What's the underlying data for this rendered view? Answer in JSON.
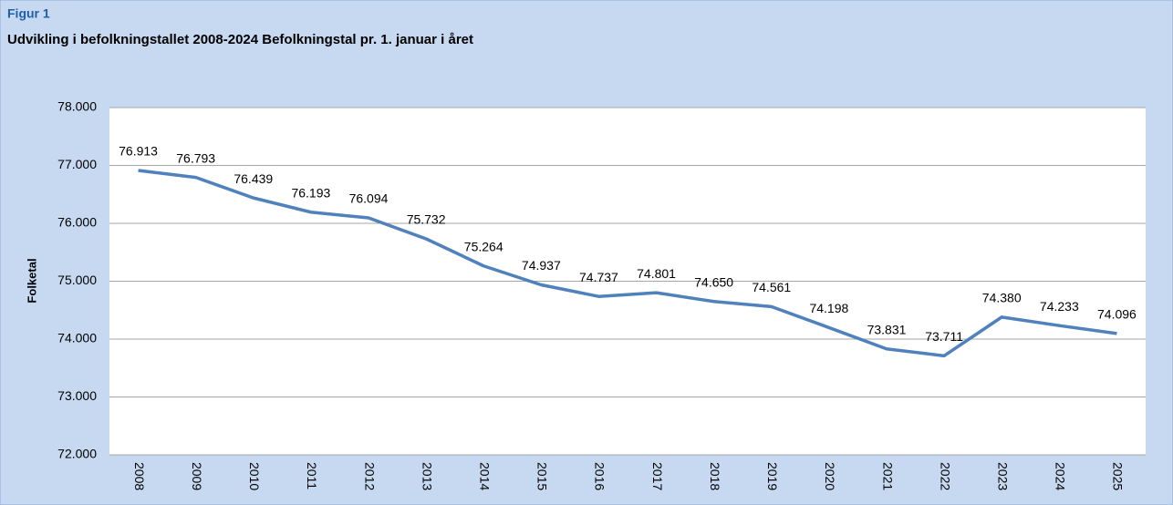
{
  "chart_data": {
    "type": "line",
    "figure_label": "Figur 1",
    "title": "Udvikling i befolkningstallet 2008-2024 Befolkningstal pr. 1. januar i året",
    "y_label": "Folketal",
    "categories": [
      "2008",
      "2009",
      "2010",
      "2011",
      "2012",
      "2013",
      "2014",
      "2015",
      "2016",
      "2017",
      "2018",
      "2019",
      "2020",
      "2021",
      "2022",
      "2023",
      "2024",
      "2025"
    ],
    "series": [
      {
        "name": "Folketal",
        "color": "#4f81bd",
        "values": [
          76913,
          76793,
          76439,
          76193,
          76094,
          75732,
          75264,
          74937,
          74737,
          74801,
          74650,
          74561,
          74198,
          73831,
          73711,
          74380,
          74233,
          74096
        ],
        "value_labels": [
          "76.913",
          "76.793",
          "76.439",
          "76.193",
          "76.094",
          "75.732",
          "75.264",
          "74.937",
          "74.737",
          "74.801",
          "74.650",
          "74.561",
          "74.198",
          "73.831",
          "73.711",
          "74.380",
          "74.233",
          "74.096"
        ]
      }
    ],
    "ylim": [
      72000,
      78000
    ],
    "yticks": [
      {
        "value": 72000,
        "label": "72.000"
      },
      {
        "value": 73000,
        "label": "73.000"
      },
      {
        "value": 74000,
        "label": "74.000"
      },
      {
        "value": 75000,
        "label": "75.000"
      },
      {
        "value": 76000,
        "label": "76.000"
      },
      {
        "value": 77000,
        "label": "77.000"
      },
      {
        "value": 78000,
        "label": "78.000"
      }
    ],
    "grid": true
  }
}
